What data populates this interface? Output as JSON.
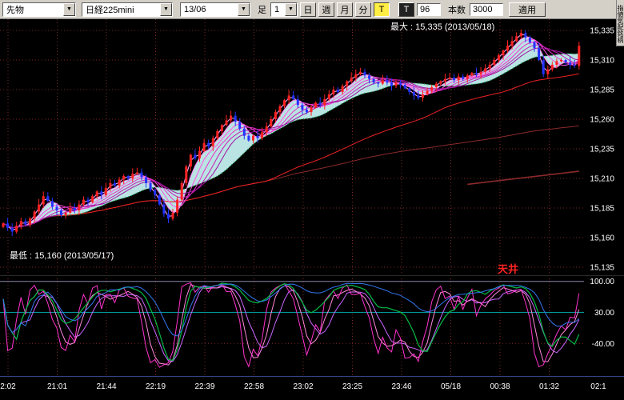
{
  "toolbar": {
    "instrument_type": "先物",
    "symbol": "日経225mini",
    "contract_month": "13/06",
    "period_label": "足",
    "minute_value": "1",
    "period_buttons": [
      "日",
      "週",
      "月",
      "分"
    ],
    "tick_button": "T",
    "tick_icon_button": "T",
    "tick_size_value": "96",
    "bars_label": "本数",
    "bars_value": "3000",
    "apply_label": "適用",
    "side_tab_label": "指値気配銘柄"
  },
  "chart_data": {
    "type": "candlestick",
    "symbol": "日経225mini 13/06",
    "annotations": {
      "max_label": "最大 : 15,335 (2013/05/18)",
      "min_label": "最低 : 15,160 (2013/05/17)",
      "ceiling_label": "天井"
    },
    "y_ticks": [
      {
        "label": "15,335",
        "value": 15335
      },
      {
        "label": "15,310",
        "value": 15310
      },
      {
        "label": "15,285",
        "value": 15285
      },
      {
        "label": "15,260",
        "value": 15260
      },
      {
        "label": "15,235",
        "value": 15235
      },
      {
        "label": "15,210",
        "value": 15210
      },
      {
        "label": "15,185",
        "value": 15185
      },
      {
        "label": "15,160",
        "value": 15160
      },
      {
        "label": "15,135",
        "value": 15135
      }
    ],
    "sub_y_ticks": [
      {
        "label": "100.00",
        "value": 100
      },
      {
        "label": "30.00",
        "value": 30
      },
      {
        "label": "-40.00",
        "value": -40
      }
    ],
    "x_labels": [
      "2:02",
      "21:01",
      "21:44",
      "22:19",
      "22:39",
      "22:58",
      "23:02",
      "23:25",
      "23:46",
      "05/18",
      "00:38",
      "01:32",
      "02:1"
    ],
    "closes": [
      15172,
      15168,
      15165,
      15170,
      15174,
      15171,
      15176,
      15182,
      15188,
      15195,
      15191,
      15186,
      15183,
      15179,
      15181,
      15185,
      15183,
      15188,
      15192,
      15190,
      15195,
      15199,
      15196,
      15202,
      15206,
      15204,
      15209,
      15212,
      15210,
      15214,
      15215,
      15211,
      15206,
      15200,
      15196,
      15188,
      15180,
      15176,
      15181,
      15192,
      15206,
      15220,
      15230,
      15227,
      15233,
      15240,
      15237,
      15244,
      15250,
      15255,
      15259,
      15263,
      15258,
      15252,
      15246,
      15242,
      15246,
      15244,
      15249,
      15254,
      15260,
      15266,
      15271,
      15276,
      15280,
      15277,
      15272,
      15268,
      15266,
      15270,
      15274,
      15272,
      15277,
      15281,
      15285,
      15283,
      15288,
      15292,
      15295,
      15298,
      15300,
      15297,
      15294,
      15291,
      15290,
      15293,
      15291,
      15288,
      15291,
      15289,
      15286,
      15283,
      15280,
      15278,
      15281,
      15284,
      15287,
      15290,
      15292,
      15294,
      15295,
      15293,
      15296,
      15294,
      15297,
      15299,
      15298,
      15300,
      15303,
      15306,
      15310,
      15314,
      15318,
      15322,
      15326,
      15330,
      15333,
      15329,
      15325,
      15320,
      15310,
      15298,
      15302,
      15306,
      15309,
      15310,
      15308,
      15306,
      15305,
      15322
    ],
    "ma": {
      "ribbon_periods": [
        2,
        4,
        6,
        8,
        10,
        12
      ],
      "green_period": 18,
      "red_period": 60,
      "long_period": 200,
      "band_fast": 4,
      "band_slow": 18
    },
    "sub": {
      "type": "oscillator",
      "fast_period": 7,
      "green_period": 21,
      "blue_period": 45,
      "range": [
        -110,
        110
      ]
    },
    "trend_segment": {
      "from_index": 104,
      "from_price": 15205,
      "to_index": 129,
      "to_price": 15216
    },
    "colors": {
      "background": "#000000",
      "grid": "#7a2828",
      "candle_up": "#ff2222",
      "candle_down": "#2233ff",
      "ribbon": [
        "#ffaaff",
        "#ff7bf0",
        "#ff55e0",
        "#e832c8",
        "#c81eb4",
        "#a014a0"
      ],
      "band_fill": "#c4efef",
      "ma_green": "#00b050",
      "ma_red": "#ee2222",
      "ma_long": "#8b2a2a",
      "axis_text": "#ffffff",
      "ceiling_text": "#ff2222",
      "osc_fast": "#ff33cc",
      "osc_mid": "#ff88dd",
      "osc_slow": "#cc66ff",
      "osc_green": "#00bb44",
      "osc_blue": "#3377ee",
      "line_100": "#8888aa",
      "line_30": "#009999",
      "line_m40": "#7a2828"
    }
  }
}
